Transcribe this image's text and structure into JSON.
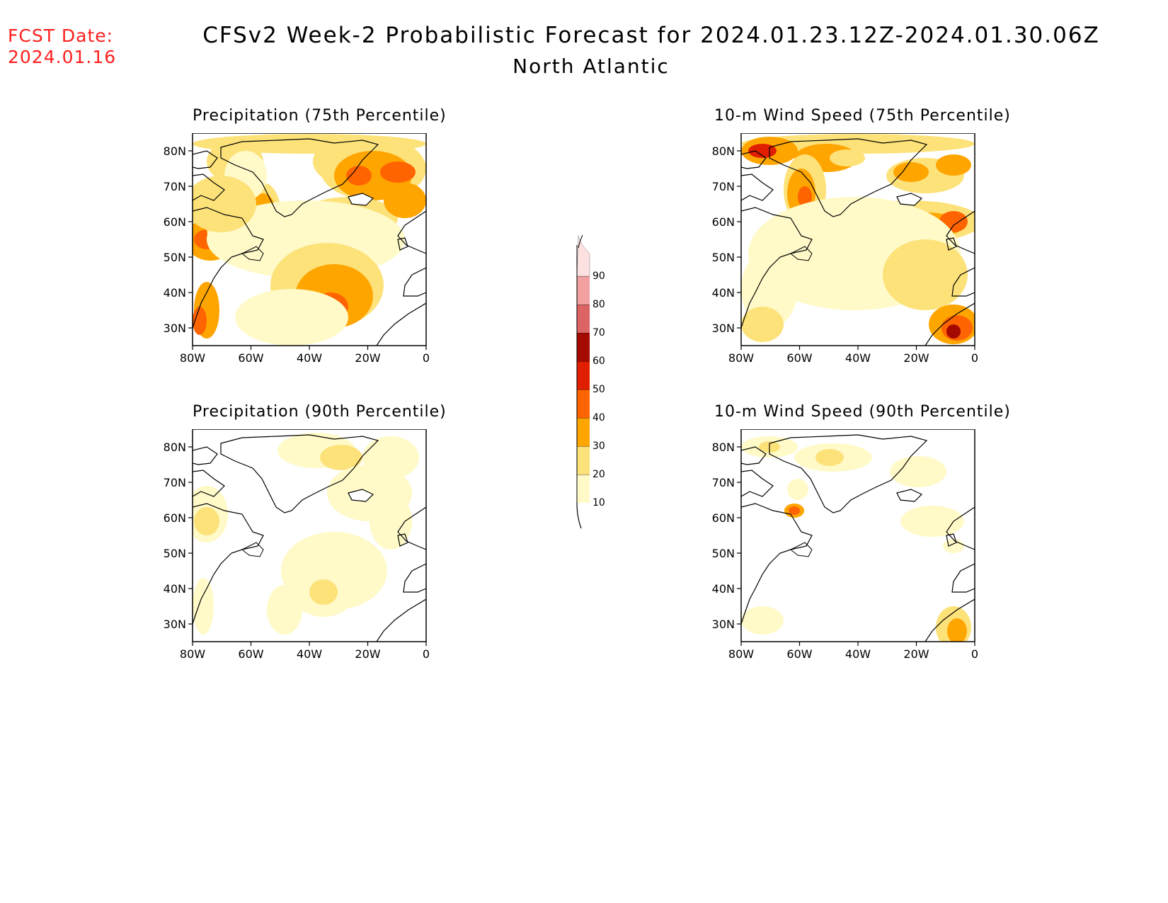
{
  "fcst_label": "FCST Date:",
  "fcst_date": "2024.01.16",
  "title_line1": "CFSv2 Week-2 Probabilistic Forecast for 2024.01.23.12Z-2024.01.30.06Z",
  "title_line2": "North Atlantic",
  "panels": [
    {
      "title": "Precipitation (75th Percentile)",
      "variable": "precipitation",
      "percentile": "75th"
    },
    {
      "title": "10-m Wind Speed (75th Percentile)",
      "variable": "wind-speed",
      "percentile": "75th"
    },
    {
      "title": "Precipitation (90th Percentile)",
      "variable": "precipitation",
      "percentile": "90th"
    },
    {
      "title": "10-m Wind Speed (90th Percentile)",
      "variable": "wind-speed",
      "percentile": "90th"
    }
  ],
  "map_axes": {
    "lat_ticks": [
      "80N",
      "70N",
      "60N",
      "50N",
      "40N",
      "30N"
    ],
    "lon_ticks": [
      "80W",
      "60W",
      "40W",
      "20W",
      "0"
    ],
    "lat_values": [
      80,
      70,
      60,
      50,
      40,
      30
    ],
    "lon_values": [
      -80,
      -60,
      -40,
      -20,
      0
    ],
    "lat_range": [
      25,
      85
    ],
    "lon_range": [
      -80,
      0
    ]
  },
  "colorbar": {
    "levels": [
      "10",
      "20",
      "30",
      "40",
      "50",
      "60",
      "70",
      "80",
      "90"
    ],
    "colors": [
      "#fffac8",
      "#fde27a",
      "#ffa500",
      "#ff6400",
      "#e01e00",
      "#a50a00",
      "#dc6464",
      "#f2a0a0",
      "#fde0e0"
    ]
  }
}
